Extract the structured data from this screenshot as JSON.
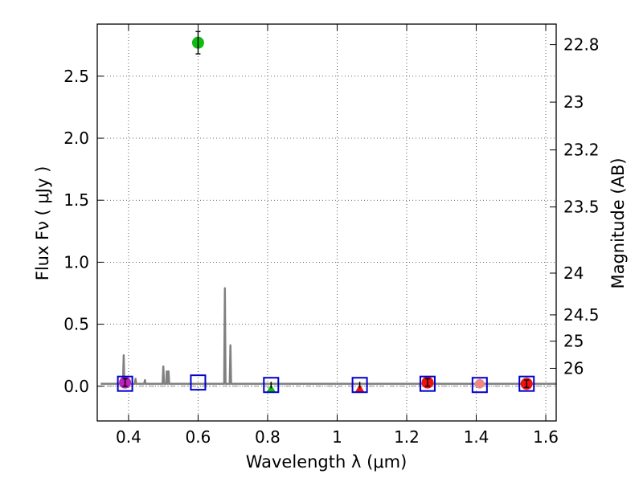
{
  "chart_data": {
    "type": "scatter",
    "xlabel": "Wavelength  λ (μm)",
    "ylabel": "Flux  Fν  ( μJy )",
    "ylabel2": "Magnitude (AB)",
    "xlim": [
      0.31,
      1.63
    ],
    "ylim": [
      -0.28,
      2.92
    ],
    "grid": true,
    "x_ticks": [
      0.4,
      0.6,
      0.8,
      1.0,
      1.2,
      1.4,
      1.6
    ],
    "x_tick_labels": [
      "0.4",
      "0.6",
      "0.8",
      "1",
      "1.2",
      "1.4",
      "1.6"
    ],
    "y_ticks": [
      0.0,
      0.5,
      1.0,
      1.5,
      2.0,
      2.5
    ],
    "y_tick_labels": [
      "0.0",
      "0.5",
      "1.0",
      "1.5",
      "2.0",
      "2.5"
    ],
    "mag_ticks": [
      22.8,
      23,
      23.2,
      23.5,
      24,
      24.5,
      25,
      26
    ],
    "mag_tick_labels": [
      "22.8",
      "23",
      "23.2",
      "23.5",
      "24",
      "24.5",
      "25",
      "26"
    ],
    "model_squares": [
      {
        "x": 0.39,
        "y": 0.02
      },
      {
        "x": 0.6,
        "y": 0.03
      },
      {
        "x": 0.81,
        "y": 0.01
      },
      {
        "x": 1.065,
        "y": 0.01
      },
      {
        "x": 1.26,
        "y": 0.02
      },
      {
        "x": 1.41,
        "y": 0.01
      },
      {
        "x": 1.545,
        "y": 0.02
      }
    ],
    "detections": [
      {
        "x": 0.39,
        "y": 0.03,
        "err": 0.03,
        "color": "#bb22bb"
      },
      {
        "x": 0.6,
        "y": 2.77,
        "err": 0.09,
        "color": "#11bb11"
      },
      {
        "x": 1.26,
        "y": 0.03,
        "err": 0.03,
        "color": "#ee1111"
      },
      {
        "x": 1.545,
        "y": 0.02,
        "err": 0.03,
        "color": "#ee1111"
      }
    ],
    "upper_limits": [
      {
        "x": 0.81,
        "y": -0.01,
        "color": "#11bb11"
      },
      {
        "x": 1.065,
        "y": -0.01,
        "color": "#ee1111"
      }
    ],
    "faint_points": [
      {
        "x": 1.41,
        "y": 0.02,
        "color": "#ee8888"
      }
    ],
    "spectrum": {
      "continuum": 0.02,
      "lines": [
        {
          "x": 0.386,
          "flux": 0.25
        },
        {
          "x": 0.42,
          "flux": 0.06
        },
        {
          "x": 0.447,
          "flux": 0.05
        },
        {
          "x": 0.5,
          "flux": 0.16
        },
        {
          "x": 0.51,
          "flux": 0.12
        },
        {
          "x": 0.515,
          "flux": 0.12
        },
        {
          "x": 0.677,
          "flux": 0.79
        },
        {
          "x": 0.693,
          "flux": 0.33
        }
      ]
    },
    "colors": {
      "spectrum": "#808080",
      "square": "#0000cc",
      "grid": "#333333"
    }
  }
}
